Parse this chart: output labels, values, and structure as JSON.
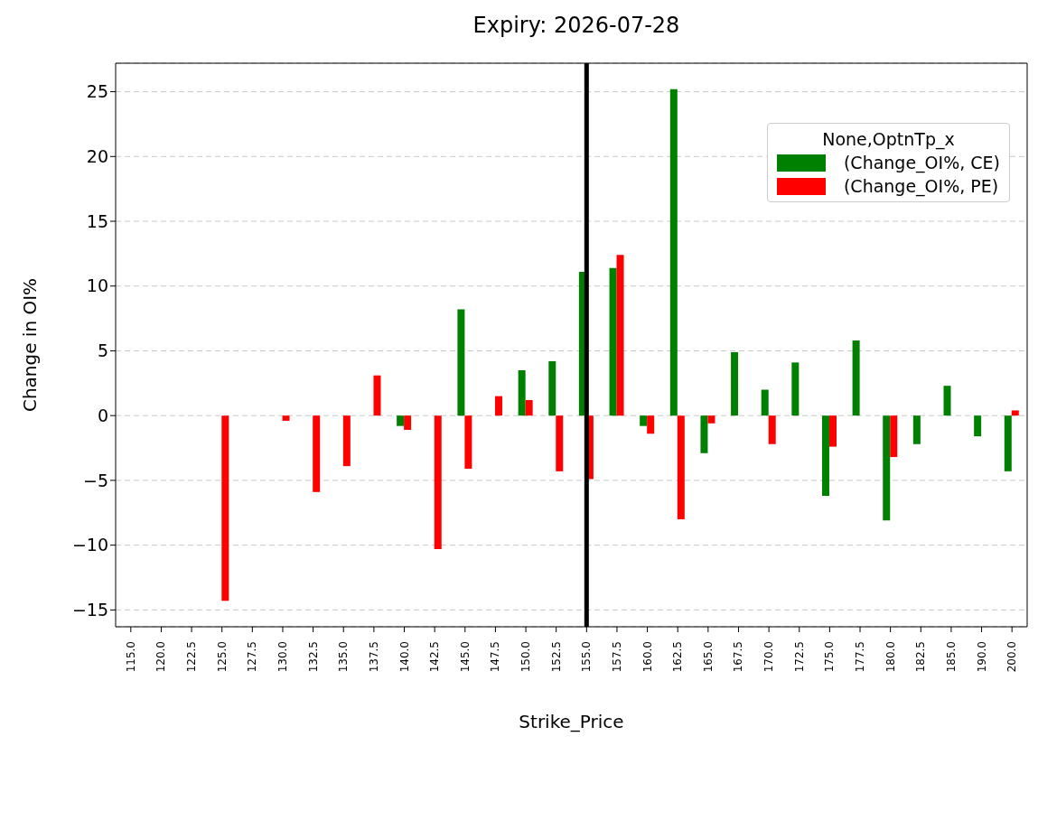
{
  "chart_data": {
    "type": "bar",
    "title": "Expiry: 2026-07-28",
    "xlabel": "Strike_Price",
    "ylabel": "Change in OI%",
    "legend_title": "None,OptnTp_x",
    "categories": [
      "115.0",
      "120.0",
      "122.5",
      "125.0",
      "127.5",
      "130.0",
      "132.5",
      "135.0",
      "137.5",
      "140.0",
      "142.5",
      "145.0",
      "147.5",
      "150.0",
      "152.5",
      "155.0",
      "157.5",
      "160.0",
      "162.5",
      "165.0",
      "167.5",
      "170.0",
      "172.5",
      "175.0",
      "177.5",
      "180.0",
      "182.5",
      "185.0",
      "190.0",
      "200.0"
    ],
    "series": [
      {
        "name": " (Change_OI%, CE)",
        "color": "#008000",
        "values": [
          null,
          null,
          null,
          null,
          null,
          null,
          null,
          null,
          null,
          -0.8,
          null,
          8.2,
          null,
          3.5,
          4.2,
          11.1,
          11.4,
          -0.8,
          25.2,
          -2.9,
          4.9,
          2.0,
          4.1,
          -6.2,
          5.8,
          -8.1,
          -2.2,
          2.3,
          -1.6,
          -4.3
        ]
      },
      {
        "name": " (Change_OI%, PE)",
        "color": "#ff0000",
        "values": [
          null,
          null,
          null,
          -14.3,
          null,
          -0.4,
          -5.9,
          -3.9,
          3.1,
          -1.1,
          -10.3,
          -4.1,
          1.5,
          1.2,
          -4.3,
          -4.9,
          12.4,
          -1.4,
          -8.0,
          -0.6,
          null,
          -2.2,
          null,
          -2.4,
          null,
          -3.2,
          null,
          null,
          null,
          0.4
        ]
      }
    ],
    "ylim": [
      -16.3,
      27.2
    ],
    "yticks": [
      -15,
      -10,
      -5,
      0,
      5,
      10,
      15,
      20,
      25
    ],
    "grid": "y",
    "legend": "top right",
    "ref_lines": [
      {
        "axis": "x",
        "value": "155.0",
        "color": "#000000"
      }
    ]
  }
}
